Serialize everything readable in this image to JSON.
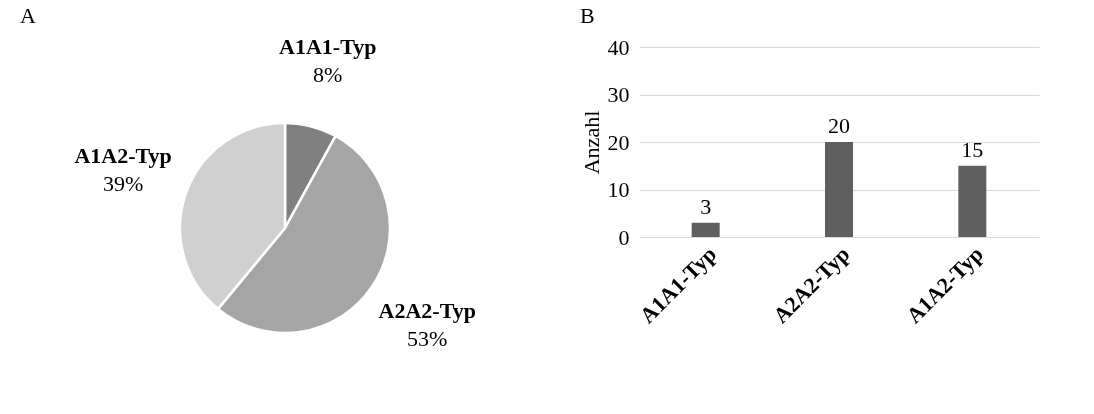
{
  "chart_data": [
    {
      "type": "pie",
      "title": "A",
      "categories": [
        "A1A1-Typ",
        "A2A2-Typ",
        "A1A2-Typ"
      ],
      "values": [
        8,
        53,
        39
      ],
      "colors": [
        "#808080",
        "#a5a5a5",
        "#d0d0d0"
      ],
      "value_labels": [
        "8%",
        "53%",
        "39%"
      ]
    },
    {
      "type": "bar",
      "title": "B",
      "categories": [
        "A1A1-Typ",
        "A2A2-Typ",
        "A1A2-Typ"
      ],
      "values": [
        3,
        20,
        15
      ],
      "color": "#5f5f5f",
      "ylabel": "Anzahl",
      "ylim": [
        0,
        40
      ],
      "yticks": [
        0,
        10,
        20,
        30,
        40
      ],
      "grid": "y",
      "data_labels": true
    }
  ]
}
